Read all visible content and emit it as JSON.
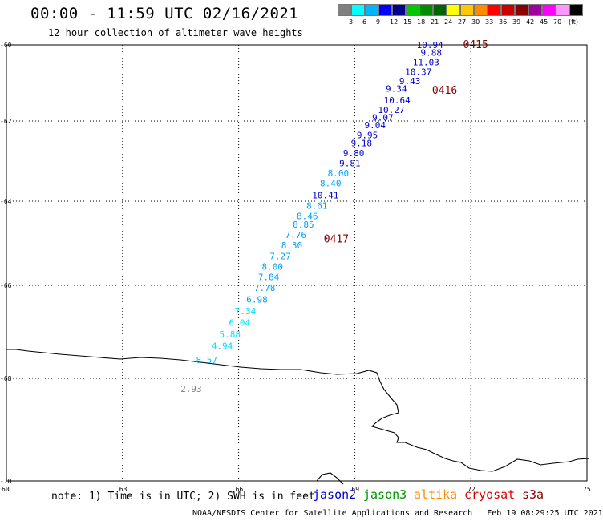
{
  "title": "00:00 - 11:59 UTC 02/16/2021",
  "subtitle": "12 hour collection of altimeter wave heights",
  "legend": {
    "unit": "(ft)",
    "bins": [
      {
        "color": "#808080",
        "label": ""
      },
      {
        "color": "#00ffff",
        "label": "3"
      },
      {
        "color": "#00b4ff",
        "label": "6"
      },
      {
        "color": "#0000ff",
        "label": "9"
      },
      {
        "color": "#00008b",
        "label": "12"
      },
      {
        "color": "#00c800",
        "label": "15"
      },
      {
        "color": "#008c00",
        "label": "18"
      },
      {
        "color": "#006400",
        "label": "21"
      },
      {
        "color": "#ffff00",
        "label": "24"
      },
      {
        "color": "#ffc800",
        "label": "27"
      },
      {
        "color": "#ff8c00",
        "label": "30"
      },
      {
        "color": "#ff0000",
        "label": "33"
      },
      {
        "color": "#c80000",
        "label": "36"
      },
      {
        "color": "#8b0000",
        "label": "39"
      },
      {
        "color": "#a000a0",
        "label": "42"
      },
      {
        "color": "#ff00ff",
        "label": "45"
      },
      {
        "color": "#ff96ff",
        "label": "70"
      },
      {
        "color": "#000000",
        "label": ""
      }
    ]
  },
  "axes": {
    "lat_labels": [
      "-60",
      "-62",
      "-64",
      "-66",
      "-68",
      "-70"
    ],
    "lon_labels": [
      "60",
      "63",
      "66",
      "69",
      "72",
      "75"
    ]
  },
  "measurements": [
    {
      "value": "10.94",
      "color": "#0000cd",
      "lon": 70.6,
      "lat": -60.0
    },
    {
      "value": "9.88",
      "color": "#0000cd",
      "lon": 70.7,
      "lat": -60.2
    },
    {
      "value": "11.03",
      "color": "#0000cd",
      "lon": 70.5,
      "lat": -60.45
    },
    {
      "value": "10.37",
      "color": "#0000cd",
      "lon": 70.3,
      "lat": -60.7
    },
    {
      "value": "9.43",
      "color": "#0000cd",
      "lon": 70.15,
      "lat": -60.95
    },
    {
      "value": "9.34",
      "color": "#0000cd",
      "lon": 69.8,
      "lat": -61.15
    },
    {
      "value": "10.64",
      "color": "#0000cd",
      "lon": 69.75,
      "lat": -61.45
    },
    {
      "value": "10.27",
      "color": "#0000cd",
      "lon": 69.6,
      "lat": -61.7
    },
    {
      "value": "9.07",
      "color": "#0000cd",
      "lon": 69.45,
      "lat": -61.9
    },
    {
      "value": "9.04",
      "color": "#0000cd",
      "lon": 69.25,
      "lat": -62.1
    },
    {
      "value": "9.95",
      "color": "#0000cd",
      "lon": 69.05,
      "lat": -62.35
    },
    {
      "value": "9.18",
      "color": "#0000cd",
      "lon": 68.9,
      "lat": -62.55
    },
    {
      "value": "9.80",
      "color": "#0000cd",
      "lon": 68.7,
      "lat": -62.8
    },
    {
      "value": "9.81",
      "color": "#0000cd",
      "lon": 68.6,
      "lat": -63.05
    },
    {
      "value": "8.00",
      "color": "#00a0ff",
      "lon": 68.3,
      "lat": -63.3
    },
    {
      "value": "8.40",
      "color": "#00a0ff",
      "lon": 68.1,
      "lat": -63.55
    },
    {
      "value": "10.41",
      "color": "#0000cd",
      "lon": 67.9,
      "lat": -63.85
    },
    {
      "value": "8.61",
      "color": "#00a0ff",
      "lon": 67.75,
      "lat": -64.1
    },
    {
      "value": "8.46",
      "color": "#00a0ff",
      "lon": 67.5,
      "lat": -64.35
    },
    {
      "value": "8.85",
      "color": "#00a0ff",
      "lon": 67.4,
      "lat": -64.55
    },
    {
      "value": "7.76",
      "color": "#00a0ff",
      "lon": 67.2,
      "lat": -64.8
    },
    {
      "value": "8.30",
      "color": "#00a0ff",
      "lon": 67.1,
      "lat": -65.05
    },
    {
      "value": "7.27",
      "color": "#00a0ff",
      "lon": 66.8,
      "lat": -65.3
    },
    {
      "value": "8.00",
      "color": "#00a0ff",
      "lon": 66.6,
      "lat": -65.55
    },
    {
      "value": "7.84",
      "color": "#00a0ff",
      "lon": 66.5,
      "lat": -65.8
    },
    {
      "value": "7.78",
      "color": "#00a0ff",
      "lon": 66.4,
      "lat": -66.05
    },
    {
      "value": "6.98",
      "color": "#00a0ff",
      "lon": 66.2,
      "lat": -66.3
    },
    {
      "value": "7.34",
      "color": "#00e0ff",
      "lon": 65.9,
      "lat": -66.55
    },
    {
      "value": "6.04",
      "color": "#00e0ff",
      "lon": 65.75,
      "lat": -66.8
    },
    {
      "value": "5.88",
      "color": "#00e0ff",
      "lon": 65.5,
      "lat": -67.05
    },
    {
      "value": "4.94",
      "color": "#00e0ff",
      "lon": 65.3,
      "lat": -67.3
    },
    {
      "value": "8.57",
      "color": "#00c8ff",
      "lon": 64.9,
      "lat": -67.6
    },
    {
      "value": "2.93",
      "color": "#808080",
      "lon": 64.5,
      "lat": -68.2
    }
  ],
  "times": [
    {
      "label": "0415",
      "color": "#800000",
      "lon": 71.8,
      "lat": -60.0
    },
    {
      "label": "0416",
      "color": "#800000",
      "lon": 71.0,
      "lat": -61.2
    },
    {
      "label": "0417",
      "color": "#800000",
      "lon": 68.2,
      "lat": -64.9
    }
  ],
  "note": "note: 1) Time is in UTC; 2) SWH is in feet",
  "satellites": [
    {
      "name": "jason2",
      "color": "#0000cd"
    },
    {
      "name": "jason3",
      "color": "#009600"
    },
    {
      "name": "altika",
      "color": "#ff8c00"
    },
    {
      "name": "cryosat",
      "color": "#e00000"
    },
    {
      "name": "s3a",
      "color": "#8b0000"
    }
  ],
  "credit": "NOAA/NESDIS Center for Satellite Applications and Research   Feb 19 08:29:25 UTC 2021"
}
